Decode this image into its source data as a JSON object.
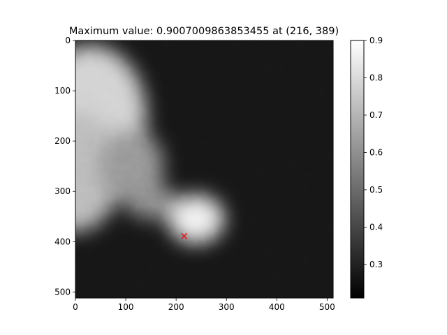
{
  "chart_data": {
    "type": "heatmap",
    "title": "Maximum value: 0.9007009863853455 at (216, 389)",
    "image_size": [
      512,
      512
    ],
    "colormap": "gray",
    "xlim": [
      0,
      512
    ],
    "ylim": [
      512,
      0
    ],
    "x_ticks": [
      0,
      100,
      200,
      300,
      400,
      500
    ],
    "y_ticks": [
      0,
      100,
      200,
      300,
      400,
      500
    ],
    "colorbar": {
      "range": [
        0.21,
        0.9
      ],
      "ticks": [
        0.3,
        0.4,
        0.5,
        0.6,
        0.7,
        0.8,
        0.9
      ],
      "tick_labels": [
        "0.3",
        "0.4",
        "0.5",
        "0.6",
        "0.7",
        "0.8",
        "0.9"
      ]
    },
    "max_marker": {
      "x": 216,
      "y": 389,
      "value": 0.9007009863853455,
      "symbol": "x",
      "color": "#e41a1c"
    },
    "bright_regions": [
      {
        "cx": 30,
        "cy": 150,
        "rx": 110,
        "ry": 140,
        "value": 0.78
      },
      {
        "cx": 0,
        "cy": 260,
        "rx": 90,
        "ry": 120,
        "value": 0.72
      },
      {
        "cx": 110,
        "cy": 250,
        "rx": 65,
        "ry": 75,
        "value": 0.62
      },
      {
        "cx": 240,
        "cy": 355,
        "rx": 55,
        "ry": 48,
        "value": 0.86
      },
      {
        "cx": 150,
        "cy": 320,
        "rx": 50,
        "ry": 35,
        "value": 0.6
      }
    ],
    "background_value": 0.27
  }
}
